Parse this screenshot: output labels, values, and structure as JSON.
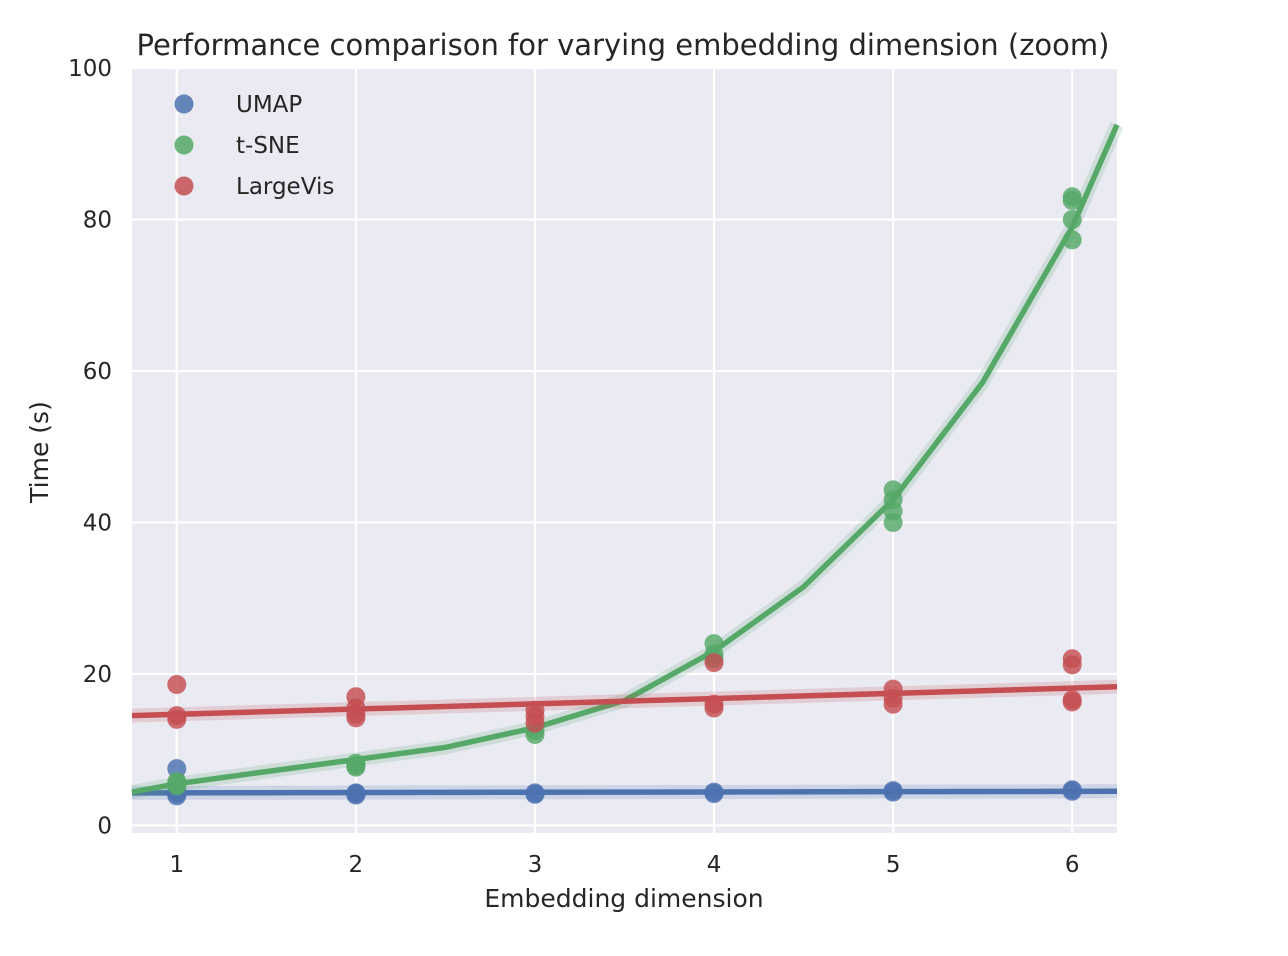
{
  "chart_data": {
    "type": "scatter",
    "title": "Performance comparison for varying embedding dimension (zoom)",
    "xlabel": "Embedding dimension",
    "ylabel": "Time (s)",
    "xlim": [
      0.75,
      6.25
    ],
    "ylim": [
      -1,
      100
    ],
    "x_ticks": [
      1,
      2,
      3,
      4,
      5,
      6
    ],
    "y_ticks": [
      0,
      20,
      40,
      60,
      80,
      100
    ],
    "grid": true,
    "legend_position": "top-left",
    "series": [
      {
        "name": "UMAP",
        "color": "#4c72b0",
        "points": [
          {
            "x": 1,
            "y": 7.5
          },
          {
            "x": 1,
            "y": 4.2
          },
          {
            "x": 1,
            "y": 3.9
          },
          {
            "x": 1,
            "y": 4.5
          },
          {
            "x": 2,
            "y": 4.2
          },
          {
            "x": 2,
            "y": 4.0
          },
          {
            "x": 2,
            "y": 4.3
          },
          {
            "x": 3,
            "y": 4.3
          },
          {
            "x": 3,
            "y": 4.1
          },
          {
            "x": 4,
            "y": 4.4
          },
          {
            "x": 4,
            "y": 4.2
          },
          {
            "x": 5,
            "y": 4.6
          },
          {
            "x": 5,
            "y": 4.4
          },
          {
            "x": 6,
            "y": 4.7
          },
          {
            "x": 6,
            "y": 4.5
          }
        ],
        "fit": [
          {
            "x": 0.75,
            "y": 4.3
          },
          {
            "x": 6.25,
            "y": 4.5
          }
        ]
      },
      {
        "name": "t-SNE",
        "color": "#55a868",
        "points": [
          {
            "x": 1,
            "y": 5.8
          },
          {
            "x": 1,
            "y": 5.5
          },
          {
            "x": 1,
            "y": 5.2
          },
          {
            "x": 2,
            "y": 8.2
          },
          {
            "x": 2,
            "y": 7.7
          },
          {
            "x": 2,
            "y": 7.9
          },
          {
            "x": 3,
            "y": 12.5
          },
          {
            "x": 3,
            "y": 12.0
          },
          {
            "x": 4,
            "y": 24.0
          },
          {
            "x": 4,
            "y": 22.6
          },
          {
            "x": 4,
            "y": 22.0
          },
          {
            "x": 5,
            "y": 44.3
          },
          {
            "x": 5,
            "y": 43.0
          },
          {
            "x": 5,
            "y": 41.5
          },
          {
            "x": 5,
            "y": 40.0
          },
          {
            "x": 6,
            "y": 83.0
          },
          {
            "x": 6,
            "y": 82.5
          },
          {
            "x": 6,
            "y": 80.0
          },
          {
            "x": 6,
            "y": 77.3
          }
        ],
        "fit": [
          {
            "x": 0.75,
            "y": 4.4
          },
          {
            "x": 1.0,
            "y": 5.5
          },
          {
            "x": 1.5,
            "y": 7.1
          },
          {
            "x": 2.0,
            "y": 8.7
          },
          {
            "x": 2.5,
            "y": 10.3
          },
          {
            "x": 3.0,
            "y": 12.9
          },
          {
            "x": 3.5,
            "y": 16.5
          },
          {
            "x": 4.0,
            "y": 23.0
          },
          {
            "x": 4.5,
            "y": 31.5
          },
          {
            "x": 5.0,
            "y": 43.0
          },
          {
            "x": 5.5,
            "y": 58.5
          },
          {
            "x": 6.0,
            "y": 79.0
          },
          {
            "x": 6.25,
            "y": 92.5
          }
        ]
      },
      {
        "name": "LargeVis",
        "color": "#c44e52",
        "points": [
          {
            "x": 1,
            "y": 18.6
          },
          {
            "x": 1,
            "y": 14.5
          },
          {
            "x": 1,
            "y": 14.0
          },
          {
            "x": 2,
            "y": 17.0
          },
          {
            "x": 2,
            "y": 15.5
          },
          {
            "x": 2,
            "y": 14.7
          },
          {
            "x": 2,
            "y": 14.2
          },
          {
            "x": 3,
            "y": 15.2
          },
          {
            "x": 3,
            "y": 14.4
          },
          {
            "x": 3,
            "y": 13.5
          },
          {
            "x": 4,
            "y": 21.5
          },
          {
            "x": 4,
            "y": 16.0
          },
          {
            "x": 4,
            "y": 15.5
          },
          {
            "x": 5,
            "y": 18.0
          },
          {
            "x": 5,
            "y": 16.8
          },
          {
            "x": 5,
            "y": 16.0
          },
          {
            "x": 6,
            "y": 22.0
          },
          {
            "x": 6,
            "y": 21.2
          },
          {
            "x": 6,
            "y": 16.6
          },
          {
            "x": 6,
            "y": 16.3
          }
        ],
        "fit": [
          {
            "x": 0.75,
            "y": 14.5
          },
          {
            "x": 6.25,
            "y": 18.3
          }
        ]
      }
    ]
  }
}
